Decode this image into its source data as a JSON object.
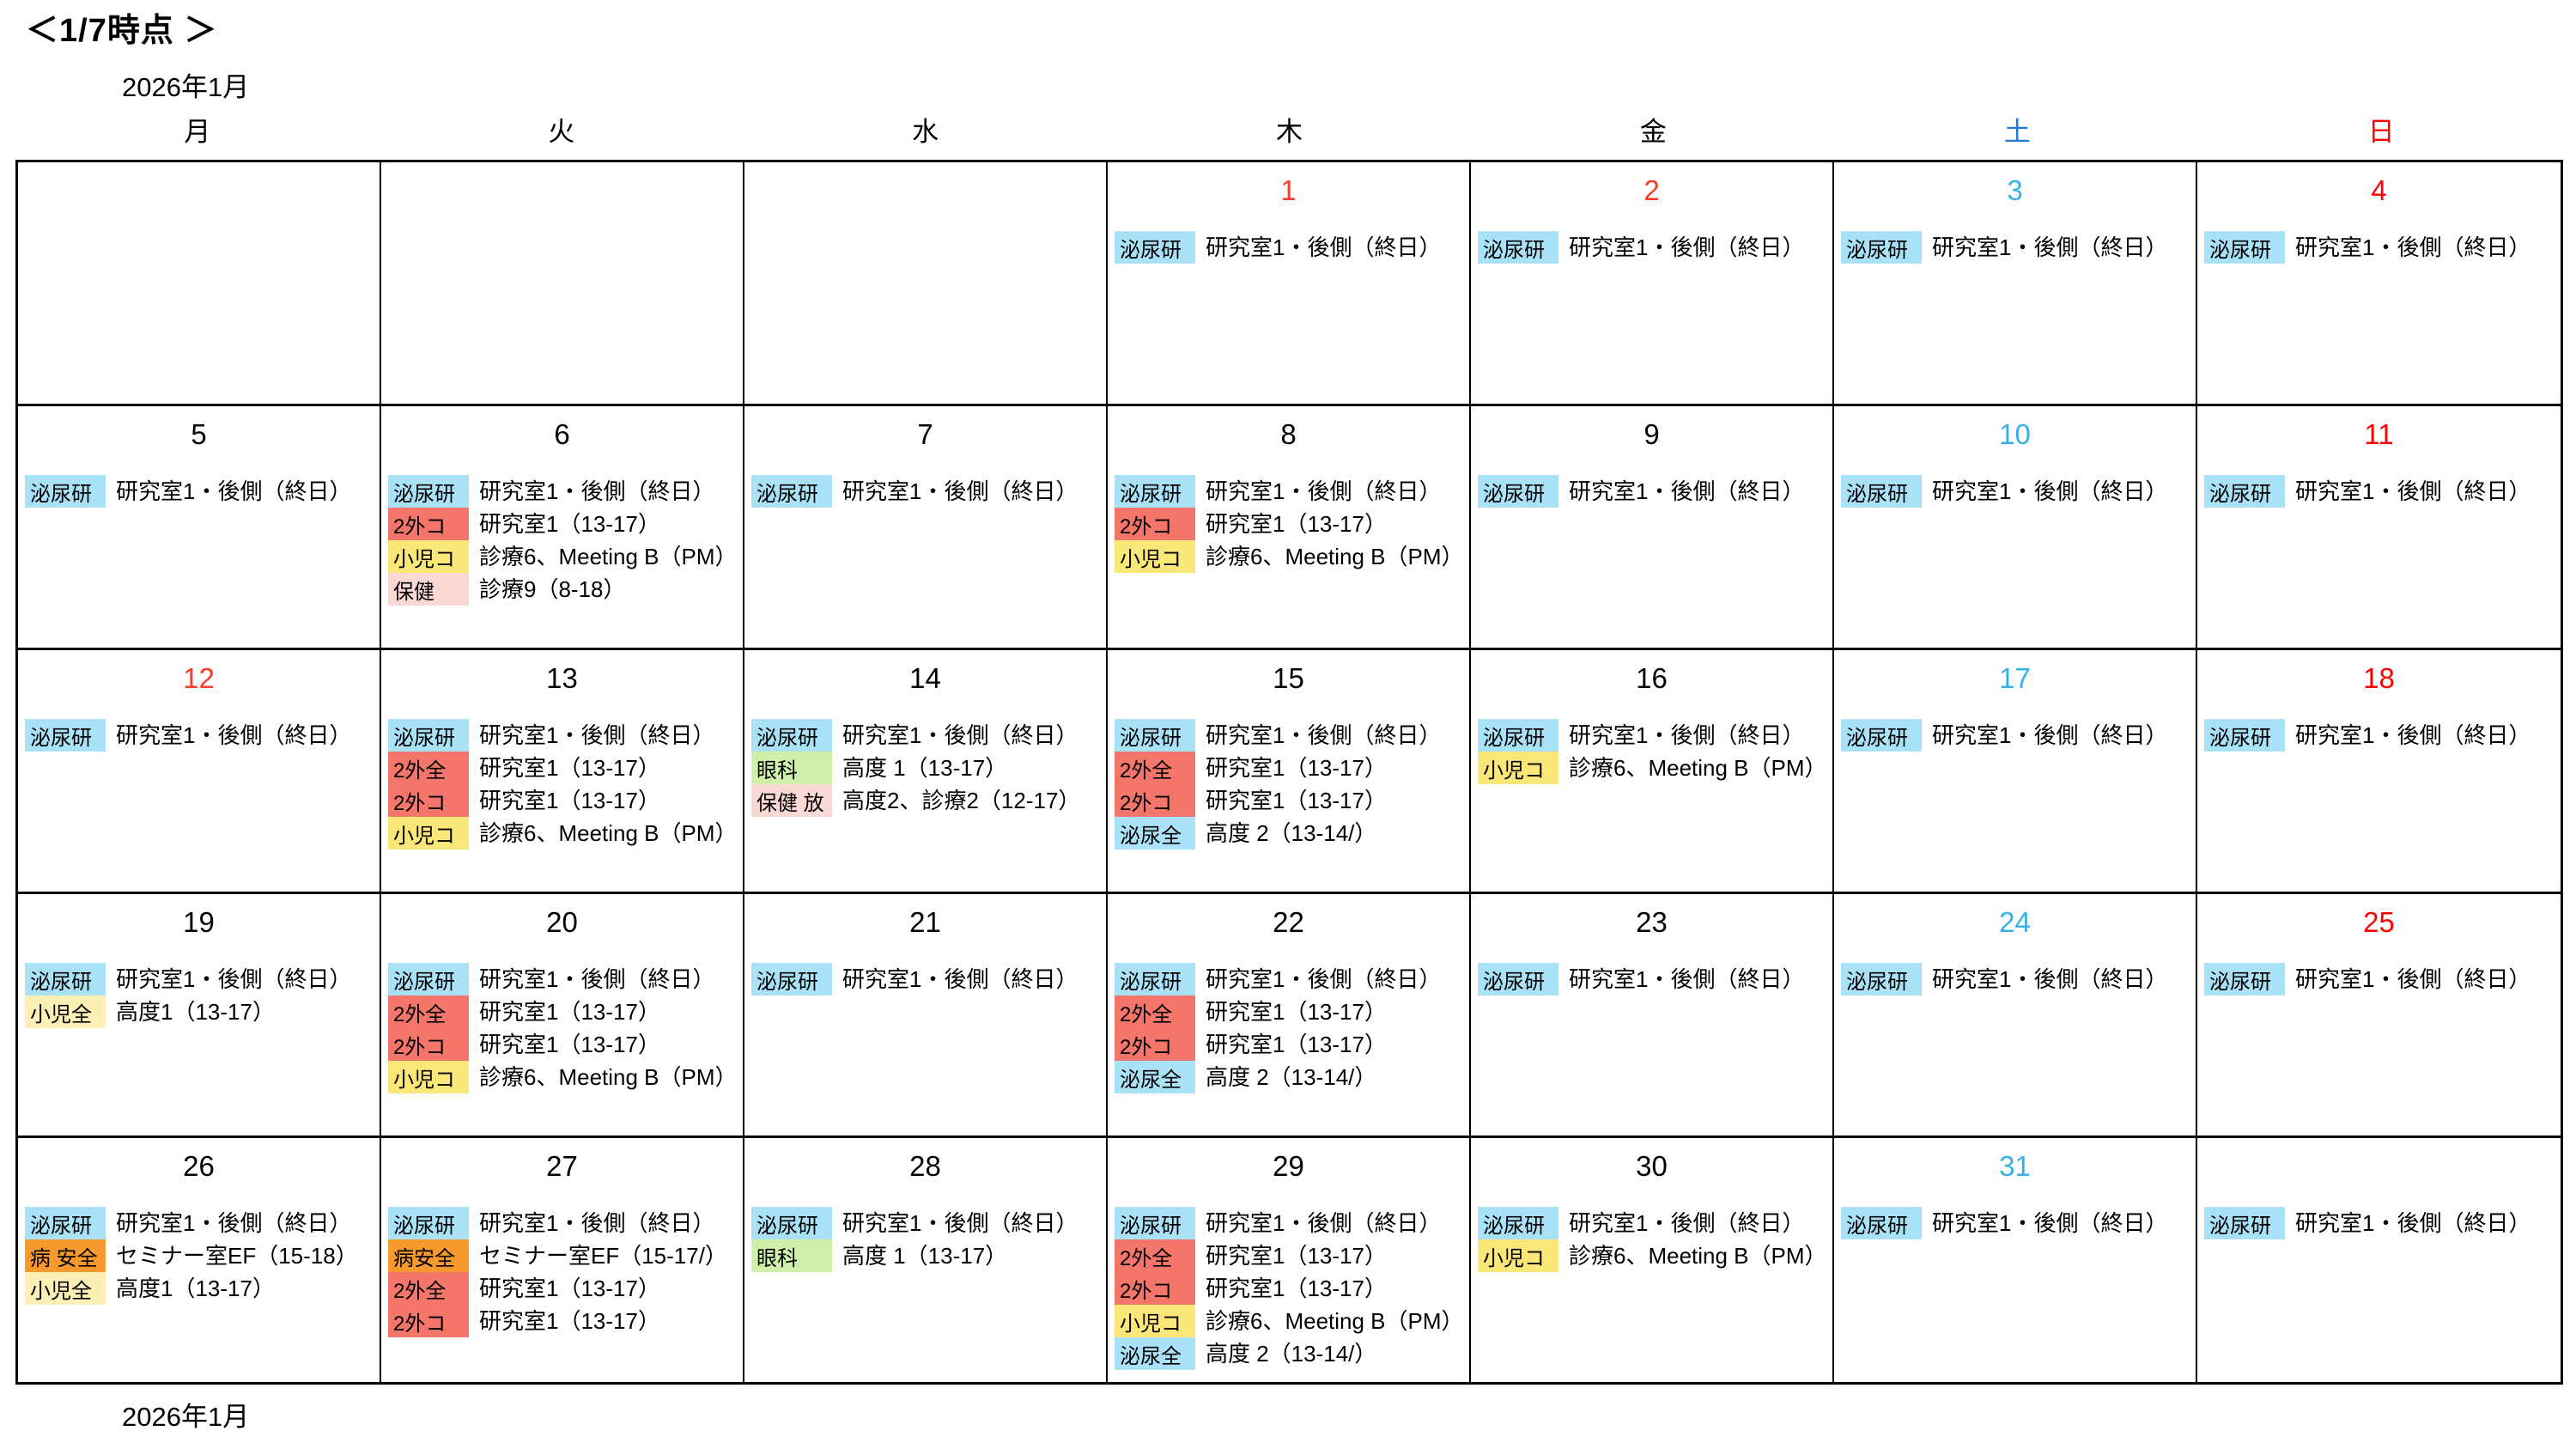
{
  "title": "＜1/7時点 ＞",
  "month_label_top": "2026年1月",
  "month_label_bottom": "2026年1月",
  "weekday_headers": [
    {
      "label": "月",
      "color": "#000000"
    },
    {
      "label": "火",
      "color": "#000000"
    },
    {
      "label": "水",
      "color": "#000000"
    },
    {
      "label": "木",
      "color": "#000000"
    },
    {
      "label": "金",
      "color": "#000000"
    },
    {
      "label": "土",
      "color": "#1F7CD4"
    },
    {
      "label": "日",
      "color": "#FF0000"
    }
  ],
  "legend_colors": {
    "sky_blue": "#A9E1F7",
    "salmon": "#F4756A",
    "yellow": "#FBE778",
    "pale_yellow": "#FDF0B7",
    "pink": "#FAD8D4",
    "green": "#CFF0AB",
    "orange": "#F8992D"
  },
  "number_colors": {
    "default": "#000000",
    "saturday": "#35B1E8",
    "sunday": "#FF0000",
    "holiday": "#FB3B26"
  },
  "weeks": [
    [
      {
        "num": "",
        "num_color": "#000000",
        "events": []
      },
      {
        "num": "",
        "num_color": "#000000",
        "events": []
      },
      {
        "num": "",
        "num_color": "#000000",
        "events": []
      },
      {
        "num": "1",
        "num_color": "#FB3B26",
        "events": [
          {
            "tag": "泌尿研",
            "bg": "#A9E1F7",
            "text": "研究室1・後側（終日）"
          }
        ]
      },
      {
        "num": "2",
        "num_color": "#FB3B26",
        "events": [
          {
            "tag": "泌尿研",
            "bg": "#A9E1F7",
            "text": "研究室1・後側（終日）"
          }
        ]
      },
      {
        "num": "3",
        "num_color": "#35B1E8",
        "events": [
          {
            "tag": "泌尿研",
            "bg": "#A9E1F7",
            "text": "研究室1・後側（終日）"
          }
        ]
      },
      {
        "num": "4",
        "num_color": "#FF0000",
        "events": [
          {
            "tag": "泌尿研",
            "bg": "#A9E1F7",
            "text": "研究室1・後側（終日）"
          }
        ]
      }
    ],
    [
      {
        "num": "5",
        "num_color": "#000000",
        "events": [
          {
            "tag": "泌尿研",
            "bg": "#A9E1F7",
            "text": "研究室1・後側（終日）"
          }
        ]
      },
      {
        "num": "6",
        "num_color": "#000000",
        "events": [
          {
            "tag": "泌尿研",
            "bg": "#A9E1F7",
            "text": "研究室1・後側（終日）"
          },
          {
            "tag": "2外コ",
            "bg": "#F4756A",
            "text": "研究室1（13-17）"
          },
          {
            "tag": "小児コ",
            "bg": "#FBE778",
            "text": "診療6、Meeting B（PM）"
          },
          {
            "tag": "保健",
            "bg": "#FAD8D4",
            "text": "診療9（8-18）"
          }
        ]
      },
      {
        "num": "7",
        "num_color": "#000000",
        "events": [
          {
            "tag": "泌尿研",
            "bg": "#A9E1F7",
            "text": "研究室1・後側（終日）"
          }
        ]
      },
      {
        "num": "8",
        "num_color": "#000000",
        "events": [
          {
            "tag": "泌尿研",
            "bg": "#A9E1F7",
            "text": "研究室1・後側（終日）"
          },
          {
            "tag": "2外コ",
            "bg": "#F4756A",
            "text": "研究室1（13-17）"
          },
          {
            "tag": "小児コ",
            "bg": "#FBE778",
            "text": "診療6、Meeting B（PM）"
          }
        ]
      },
      {
        "num": "9",
        "num_color": "#000000",
        "events": [
          {
            "tag": "泌尿研",
            "bg": "#A9E1F7",
            "text": "研究室1・後側（終日）"
          }
        ]
      },
      {
        "num": "10",
        "num_color": "#35B1E8",
        "events": [
          {
            "tag": "泌尿研",
            "bg": "#A9E1F7",
            "text": "研究室1・後側（終日）"
          }
        ]
      },
      {
        "num": "11",
        "num_color": "#FF0000",
        "events": [
          {
            "tag": "泌尿研",
            "bg": "#A9E1F7",
            "text": "研究室1・後側（終日）"
          }
        ]
      }
    ],
    [
      {
        "num": "12",
        "num_color": "#FB3B26",
        "events": [
          {
            "tag": "泌尿研",
            "bg": "#A9E1F7",
            "text": "研究室1・後側（終日）"
          }
        ]
      },
      {
        "num": "13",
        "num_color": "#000000",
        "events": [
          {
            "tag": "泌尿研",
            "bg": "#A9E1F7",
            "text": "研究室1・後側（終日）"
          },
          {
            "tag": "2外全",
            "bg": "#F4756A",
            "text": "研究室1（13-17）"
          },
          {
            "tag": "2外コ",
            "bg": "#F4756A",
            "text": "研究室1（13-17）"
          },
          {
            "tag": "小児コ",
            "bg": "#FBE778",
            "text": "診療6、Meeting B（PM）"
          }
        ]
      },
      {
        "num": "14",
        "num_color": "#000000",
        "events": [
          {
            "tag": "泌尿研",
            "bg": "#A9E1F7",
            "text": "研究室1・後側（終日）"
          },
          {
            "tag": "眼科",
            "bg": "#CFF0AB",
            "text": "高度 1（13-17）"
          },
          {
            "tag": "保健 放",
            "bg": "#FAD8D4",
            "text": "高度2、診療2（12-17）"
          }
        ]
      },
      {
        "num": "15",
        "num_color": "#000000",
        "events": [
          {
            "tag": "泌尿研",
            "bg": "#A9E1F7",
            "text": "研究室1・後側（終日）"
          },
          {
            "tag": "2外全",
            "bg": "#F4756A",
            "text": "研究室1（13-17）"
          },
          {
            "tag": "2外コ",
            "bg": "#F4756A",
            "text": "研究室1（13-17）"
          },
          {
            "tag": "泌尿全",
            "bg": "#A9E1F7",
            "text": "高度 2（13-14/）"
          }
        ]
      },
      {
        "num": "16",
        "num_color": "#000000",
        "events": [
          {
            "tag": "泌尿研",
            "bg": "#A9E1F7",
            "text": "研究室1・後側（終日）"
          },
          {
            "tag": "小児コ",
            "bg": "#FBE778",
            "text": "診療6、Meeting B（PM）"
          }
        ]
      },
      {
        "num": "17",
        "num_color": "#35B1E8",
        "events": [
          {
            "tag": "泌尿研",
            "bg": "#A9E1F7",
            "text": "研究室1・後側（終日）"
          }
        ]
      },
      {
        "num": "18",
        "num_color": "#FF0000",
        "events": [
          {
            "tag": "泌尿研",
            "bg": "#A9E1F7",
            "text": "研究室1・後側（終日）"
          }
        ]
      }
    ],
    [
      {
        "num": "19",
        "num_color": "#000000",
        "events": [
          {
            "tag": "泌尿研",
            "bg": "#A9E1F7",
            "text": "研究室1・後側（終日）"
          },
          {
            "tag": "小児全",
            "bg": "#FDF0B7",
            "text": "高度1（13-17）"
          }
        ]
      },
      {
        "num": "20",
        "num_color": "#000000",
        "events": [
          {
            "tag": "泌尿研",
            "bg": "#A9E1F7",
            "text": "研究室1・後側（終日）"
          },
          {
            "tag": "2外全",
            "bg": "#F4756A",
            "text": "研究室1（13-17）"
          },
          {
            "tag": "2外コ",
            "bg": "#F4756A",
            "text": "研究室1（13-17）"
          },
          {
            "tag": "小児コ",
            "bg": "#FBE778",
            "text": "診療6、Meeting B（PM）"
          }
        ]
      },
      {
        "num": "21",
        "num_color": "#000000",
        "events": [
          {
            "tag": "泌尿研",
            "bg": "#A9E1F7",
            "text": "研究室1・後側（終日）"
          }
        ]
      },
      {
        "num": "22",
        "num_color": "#000000",
        "events": [
          {
            "tag": "泌尿研",
            "bg": "#A9E1F7",
            "text": "研究室1・後側（終日）"
          },
          {
            "tag": "2外全",
            "bg": "#F4756A",
            "text": "研究室1（13-17）"
          },
          {
            "tag": "2外コ",
            "bg": "#F4756A",
            "text": "研究室1（13-17）"
          },
          {
            "tag": "泌尿全",
            "bg": "#A9E1F7",
            "text": "高度 2（13-14/）"
          }
        ]
      },
      {
        "num": "23",
        "num_color": "#000000",
        "events": [
          {
            "tag": "泌尿研",
            "bg": "#A9E1F7",
            "text": "研究室1・後側（終日）"
          }
        ]
      },
      {
        "num": "24",
        "num_color": "#35B1E8",
        "events": [
          {
            "tag": "泌尿研",
            "bg": "#A9E1F7",
            "text": "研究室1・後側（終日）"
          }
        ]
      },
      {
        "num": "25",
        "num_color": "#FF0000",
        "events": [
          {
            "tag": "泌尿研",
            "bg": "#A9E1F7",
            "text": "研究室1・後側（終日）"
          }
        ]
      }
    ],
    [
      {
        "num": "26",
        "num_color": "#000000",
        "events": [
          {
            "tag": "泌尿研",
            "bg": "#A9E1F7",
            "text": "研究室1・後側（終日）"
          },
          {
            "tag": "病 安全",
            "bg": "#F8992D",
            "text": "セミナー室EF（15-18）"
          },
          {
            "tag": "小児全",
            "bg": "#FDF0B7",
            "text": "高度1（13-17）"
          }
        ]
      },
      {
        "num": "27",
        "num_color": "#000000",
        "events": [
          {
            "tag": "泌尿研",
            "bg": "#A9E1F7",
            "text": "研究室1・後側（終日）"
          },
          {
            "tag": "病安全",
            "bg": "#F8992D",
            "text": "セミナー室EF（15-17/）"
          },
          {
            "tag": "2外全",
            "bg": "#F4756A",
            "text": "研究室1（13-17）"
          },
          {
            "tag": "2外コ",
            "bg": "#F4756A",
            "text": "研究室1（13-17）"
          }
        ]
      },
      {
        "num": "28",
        "num_color": "#000000",
        "events": [
          {
            "tag": "泌尿研",
            "bg": "#A9E1F7",
            "text": "研究室1・後側（終日）"
          },
          {
            "tag": "眼科",
            "bg": "#CFF0AB",
            "text": "高度 1（13-17）"
          }
        ]
      },
      {
        "num": "29",
        "num_color": "#000000",
        "events": [
          {
            "tag": "泌尿研",
            "bg": "#A9E1F7",
            "text": "研究室1・後側（終日）"
          },
          {
            "tag": "2外全",
            "bg": "#F4756A",
            "text": "研究室1（13-17）"
          },
          {
            "tag": "2外コ",
            "bg": "#F4756A",
            "text": "研究室1（13-17）"
          },
          {
            "tag": "小児コ",
            "bg": "#FBE778",
            "text": "診療6、Meeting B（PM）"
          },
          {
            "tag": "泌尿全",
            "bg": "#A9E1F7",
            "text": "高度 2（13-14/）"
          }
        ]
      },
      {
        "num": "30",
        "num_color": "#000000",
        "events": [
          {
            "tag": "泌尿研",
            "bg": "#A9E1F7",
            "text": "研究室1・後側（終日）"
          },
          {
            "tag": "小児コ",
            "bg": "#FBE778",
            "text": "診療6、Meeting B（PM）"
          }
        ]
      },
      {
        "num": "31",
        "num_color": "#35B1E8",
        "events": [
          {
            "tag": "泌尿研",
            "bg": "#A9E1F7",
            "text": "研究室1・後側（終日）"
          }
        ]
      },
      {
        "num": "",
        "num_color": "#000000",
        "events": [
          {
            "tag": "泌尿研",
            "bg": "#A9E1F7",
            "text": "研究室1・後側（終日）"
          }
        ]
      }
    ]
  ]
}
